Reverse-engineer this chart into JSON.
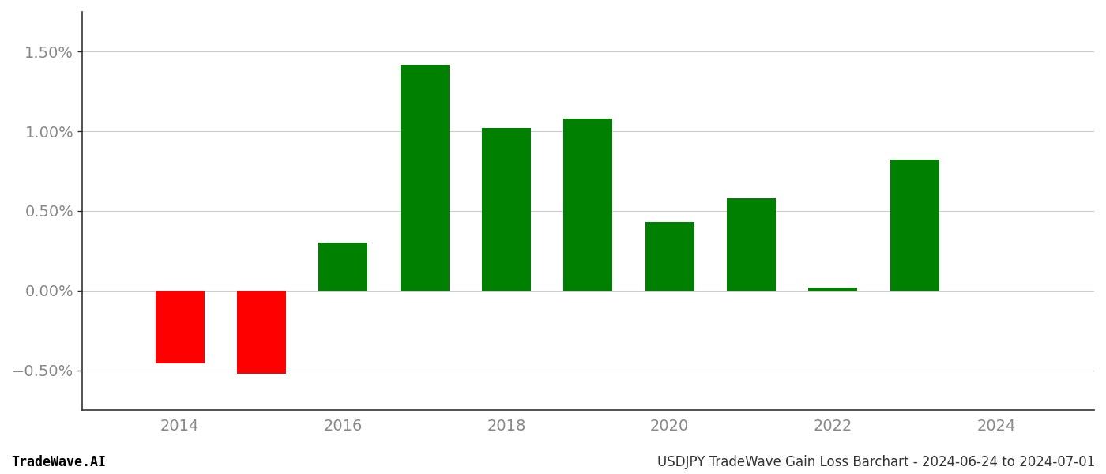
{
  "years": [
    2014,
    2015,
    2016,
    2017,
    2018,
    2019,
    2020,
    2021,
    2022,
    2023
  ],
  "values": [
    -0.0046,
    -0.0052,
    0.003,
    0.0142,
    0.0102,
    0.0108,
    0.0043,
    0.0058,
    0.0002,
    0.0082
  ],
  "color_positive": "#008000",
  "color_negative": "#ff0000",
  "background_color": "#ffffff",
  "grid_color": "#cccccc",
  "footer_left": "TradeWave.AI",
  "footer_right": "USDJPY TradeWave Gain Loss Barchart - 2024-06-24 to 2024-07-01",
  "bar_width": 0.6,
  "ylim_min": -0.0075,
  "ylim_max": 0.0175,
  "ytick_values": [
    -0.005,
    0.0,
    0.005,
    0.01,
    0.015
  ],
  "ytick_labels": [
    "−0.50%",
    "0.00%",
    "0.50%",
    "1.00%",
    "1.50%"
  ],
  "xtick_values": [
    2014,
    2016,
    2018,
    2020,
    2022,
    2024
  ],
  "xlim_min": 2012.8,
  "xlim_max": 2025.2,
  "tick_fontsize": 14,
  "footer_fontsize": 12,
  "axis_label_color": "#888888",
  "spine_color": "#333333",
  "footer_left_color": "#000000",
  "footer_right_color": "#333333"
}
